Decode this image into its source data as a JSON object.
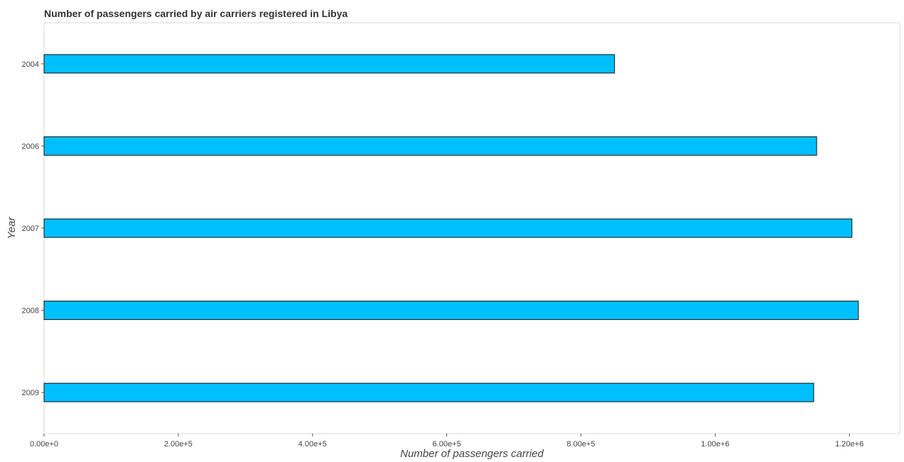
{
  "chart_data": {
    "type": "bar",
    "orientation": "horizontal",
    "title": "Number of passengers carried by air carriers registered in Libya",
    "xlabel": "Number of passengers carried",
    "ylabel": "Year",
    "categories": [
      "2004",
      "2006",
      "2007",
      "2008",
      "2009"
    ],
    "values": [
      850000,
      1151200,
      1203800,
      1213300,
      1146800
    ],
    "xlim": [
      0,
      1275000
    ],
    "xticks": [
      0,
      200000,
      400000,
      600000,
      800000,
      1000000,
      1200000
    ],
    "xtick_labels": [
      "0.00e+0",
      "2.00e+5",
      "4.00e+5",
      "6.00e+5",
      "8.00e+5",
      "1.00e+6",
      "1.20e+6"
    ],
    "bar_color": "#00bfff",
    "grid": false,
    "legend": "none"
  }
}
